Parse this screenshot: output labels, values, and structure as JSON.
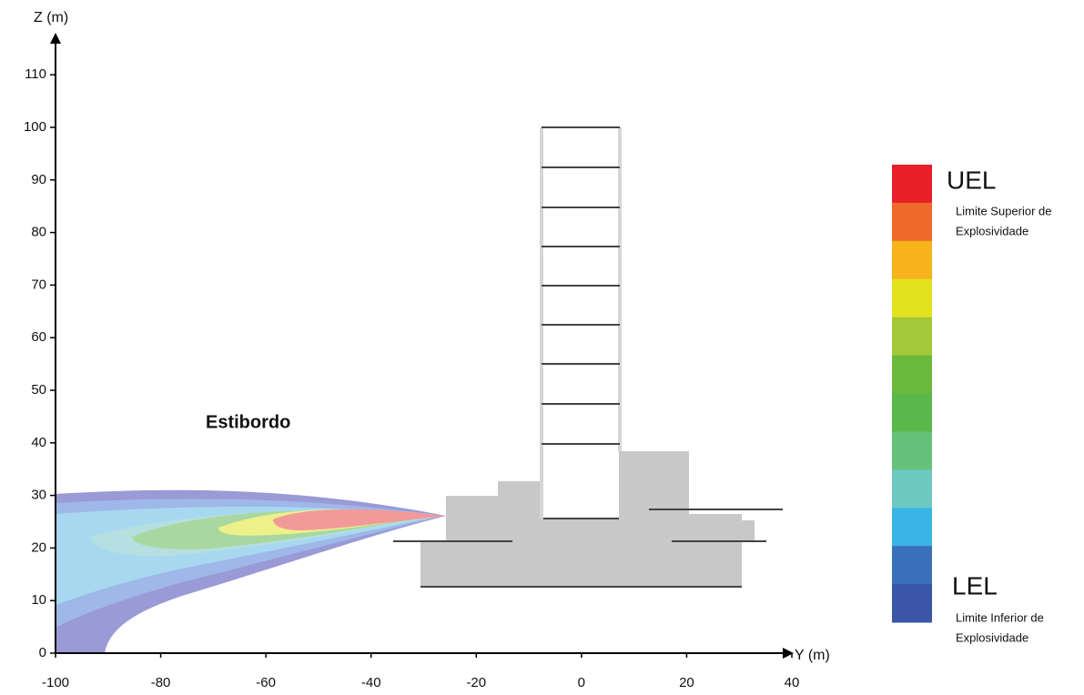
{
  "chart_data": {
    "type": "contour",
    "x_label": "Y (m)",
    "y_label": "Z (m)",
    "xlim": [
      -100,
      40
    ],
    "xticks": [
      -100,
      -80,
      -60,
      -40,
      -20,
      0,
      20,
      40
    ],
    "ylim": [
      0,
      110
    ],
    "yticks": [
      0,
      10,
      20,
      30,
      40,
      50,
      60,
      70,
      80,
      90,
      100,
      110
    ],
    "annotation": "Estibordo",
    "colorbar": {
      "colors": [
        "#e8202a",
        "#ee6a2a",
        "#f7b21c",
        "#e2e21e",
        "#a3c83a",
        "#6ab93c",
        "#5ab84a",
        "#66c27a",
        "#6cc9c0",
        "#3ab4e6",
        "#3a6fbb",
        "#3b55a8"
      ],
      "top_label": "UEL",
      "top_description": [
        "Limite Superior de",
        "Explosividade"
      ],
      "bottom_label": "LEL",
      "bottom_description": [
        "Limite Inferior de",
        "Explosividade"
      ]
    }
  }
}
